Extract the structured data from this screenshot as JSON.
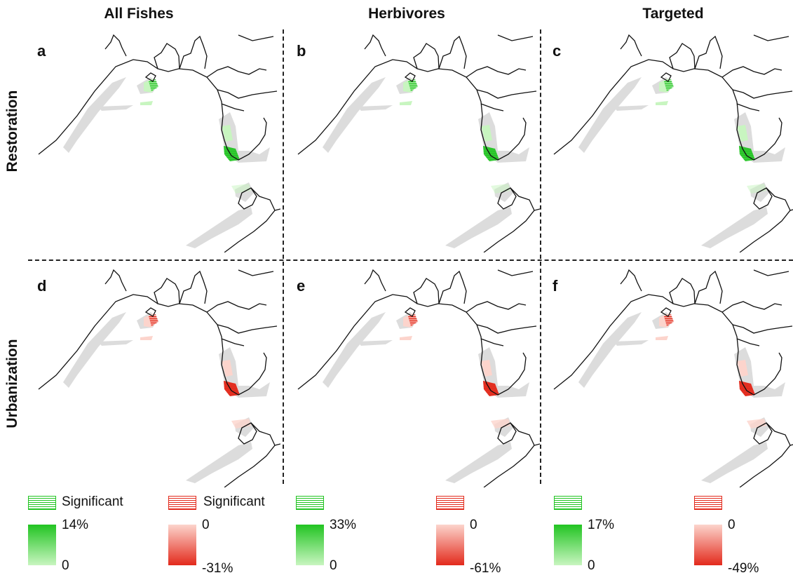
{
  "columns": [
    "All Fishes",
    "Herbivores",
    "Targeted"
  ],
  "rows": [
    "Restoration",
    "Urbanization"
  ],
  "panels": [
    {
      "letter": "a",
      "effect": "positive"
    },
    {
      "letter": "b",
      "effect": "positive"
    },
    {
      "letter": "c",
      "effect": "positive"
    },
    {
      "letter": "d",
      "effect": "negative"
    },
    {
      "letter": "e",
      "effect": "negative"
    },
    {
      "letter": "f",
      "effect": "negative"
    }
  ],
  "colors": {
    "positive_strong": "#22c422",
    "positive_light": "#c8f5c0",
    "negative_strong": "#e32a1c",
    "negative_light": "#fcd4cc",
    "reef": "#dcdcdc",
    "coast": "#111111"
  },
  "legend": {
    "significant_label": "Significant",
    "groups": [
      {
        "pos_max": "14%",
        "pos_min": "0",
        "neg_max": "0",
        "neg_min": "-31%"
      },
      {
        "pos_max": "33%",
        "pos_min": "0",
        "neg_max": "0",
        "neg_min": "-61%"
      },
      {
        "pos_max": "17%",
        "pos_min": "0",
        "neg_max": "0",
        "neg_min": "-49%"
      }
    ]
  }
}
